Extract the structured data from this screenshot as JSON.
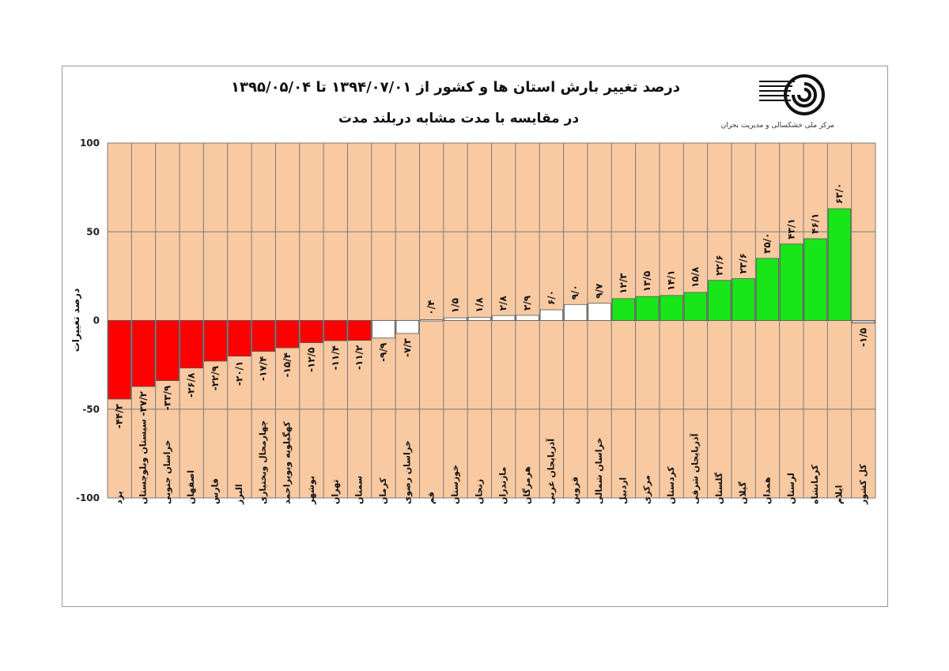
{
  "header": {
    "title_line1": "درصد تغییر بارش استان ها و کشور از ۱۳۹۴/۰۷/۰۱ تا ۱۳۹۵/۰۵/۰۴",
    "title_line2": "در مقایسه با مدت مشابه دربلند مدت",
    "logo_caption": "مرکز ملی خشکسالی و مدیریت بحران"
  },
  "colors": {
    "plot_background": "#f9c9a2",
    "negative": "#ff0000",
    "small": "#ffffff",
    "positive": "#19e619",
    "national": "#c8c8c8"
  },
  "chart_data": {
    "type": "bar",
    "ylabel": "درصد تغییرات",
    "ylim": [
      -100,
      100
    ],
    "yticks": [
      100,
      50,
      0,
      -50,
      -100
    ],
    "ytick_labels": [
      "100",
      "50",
      "0",
      "-50",
      "-100"
    ],
    "grid": true,
    "categories": [
      "یزد",
      "سیستان وبلوچستان",
      "خراسان جنوبی",
      "اصفهان",
      "فارس",
      "البرز",
      "چهارمحال وبختیاری",
      "کهگیلویه وبویراحمد",
      "بوشهر",
      "تهران",
      "سمنان",
      "کرمان",
      "خراسان رضوی",
      "قم",
      "خوزستان",
      "زنجان",
      "مازندران",
      "هرمزگان",
      "آذربایجان غربی",
      "قزوین",
      "خراسان شمالی",
      "اردبیل",
      "مرکزی",
      "کردستان",
      "آذربایجان شرقی",
      "گلستان",
      "گیلان",
      "همدان",
      "لرستان",
      "کرمانشاه",
      "ایلام",
      "کل کشور"
    ],
    "values": [
      -44.3,
      -37.2,
      -33.9,
      -26.8,
      -22.9,
      -20.1,
      -17.4,
      -15.4,
      -12.5,
      -11.4,
      -11.2,
      -9.9,
      -7.3,
      0.4,
      1.5,
      1.8,
      2.8,
      2.9,
      6.0,
      9.0,
      9.7,
      12.3,
      13.5,
      14.1,
      15.8,
      22.6,
      23.6,
      35.0,
      43.1,
      46.1,
      63.0,
      -1.5
    ],
    "value_labels": [
      "-۴۴/۳",
      "-۳۷/۲",
      "-۳۳/۹",
      "-۲۶/۸",
      "-۲۲/۹",
      "-۲۰/۱",
      "-۱۷/۴",
      "-۱۵/۴",
      "-۱۲/۵",
      "-۱۱/۴",
      "-۱۱/۲",
      "-۹/۹",
      "-۷/۳",
      "۰/۴",
      "۱/۵",
      "۱/۸",
      "۲/۸",
      "۲/۹",
      "۶/۰",
      "۹/۰",
      "۹/۷",
      "۱۲/۳",
      "۱۳/۵",
      "۱۴/۱",
      "۱۵/۸",
      "۲۲/۶",
      "۲۳/۶",
      "۳۵/۰",
      "۴۳/۱",
      "۴۶/۱",
      "۶۳/۰",
      "-۱/۵"
    ],
    "bar_colors": [
      "#ff0000",
      "#ff0000",
      "#ff0000",
      "#ff0000",
      "#ff0000",
      "#ff0000",
      "#ff0000",
      "#ff0000",
      "#ff0000",
      "#ff0000",
      "#ff0000",
      "#ffffff",
      "#ffffff",
      "#ffffff",
      "#ffffff",
      "#ffffff",
      "#ffffff",
      "#ffffff",
      "#ffffff",
      "#ffffff",
      "#ffffff",
      "#19e619",
      "#19e619",
      "#19e619",
      "#19e619",
      "#19e619",
      "#19e619",
      "#19e619",
      "#19e619",
      "#19e619",
      "#19e619",
      "#c8c8c8"
    ]
  }
}
